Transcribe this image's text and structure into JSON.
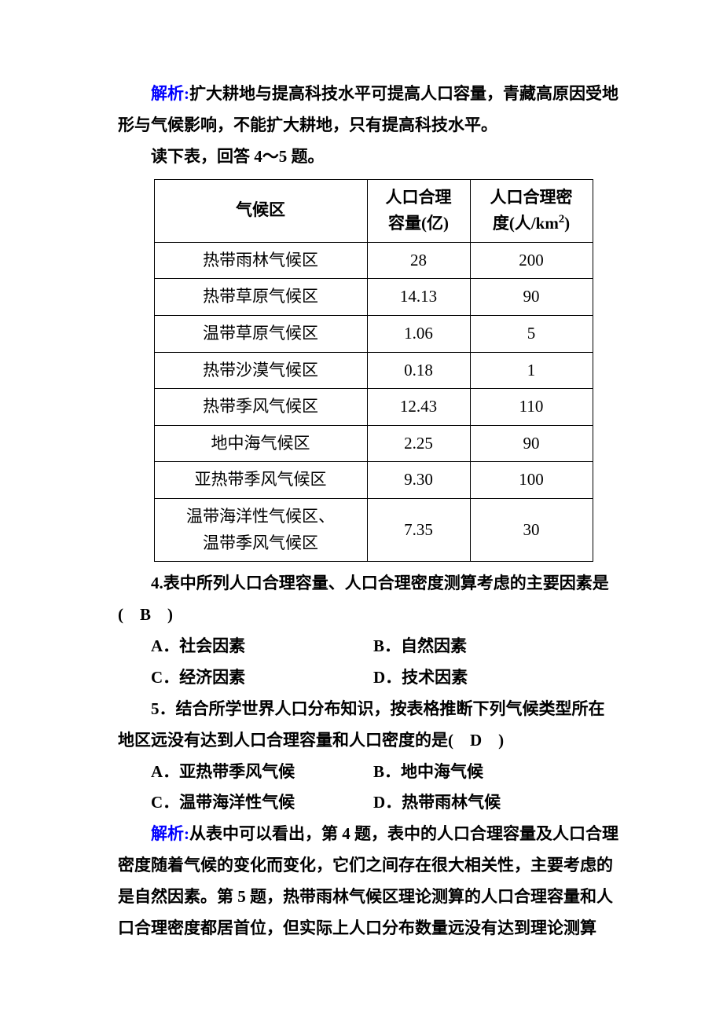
{
  "analysis1": {
    "label": "解析:",
    "text": "扩大耕地与提高科技水平可提高人口容量，青藏高原因受地形与气候影响，不能扩大耕地，只有提高科技水平。",
    "label_color": "#0000ff"
  },
  "prompt1": "读下表，回答 4～5 题。",
  "table": {
    "columns": [
      "气候区",
      "人口合理容量(亿)",
      "人口合理密度(人/km²)"
    ],
    "col_widths": [
      "270px",
      "130px",
      "155px"
    ],
    "rows": [
      [
        "热带雨林气候区",
        "28",
        "200"
      ],
      [
        "热带草原气候区",
        "14.13",
        "90"
      ],
      [
        "温带草原气候区",
        "1.06",
        "5"
      ],
      [
        "热带沙漠气候区",
        "0.18",
        "1"
      ],
      [
        "热带季风气候区",
        "12.43",
        "110"
      ],
      [
        "地中海气候区",
        "2.25",
        "90"
      ],
      [
        "亚热带季风气候区",
        "9.30",
        "100"
      ],
      [
        "温带海洋性气候区、温带季风气候区",
        "7.35",
        "30"
      ]
    ],
    "border_color": "#000000"
  },
  "q4": {
    "stem_line1": "4.表中所列人口合理容量、人口合理密度测算考虑的主要因素是",
    "stem_line2": "(　B　)",
    "options": {
      "A": "A．社会因素",
      "B": "B．自然因素",
      "C": "C．经济因素",
      "D": "D．技术因素"
    }
  },
  "q5": {
    "stem_line1": "5．结合所学世界人口分布知识，按表格推断下列气候类型所在",
    "stem_line2": "地区远没有达到人口合理容量和人口密度的是(　D　)",
    "options": {
      "A": "A．亚热带季风气候",
      "B": "B．地中海气候",
      "C": "C．温带海洋性气候",
      "D": "D．热带雨林气候"
    }
  },
  "analysis2": {
    "label": "解析:",
    "text": "从表中可以看出，第 4 题，表中的人口合理容量及人口合理密度随着气候的变化而变化，它们之间存在很大相关性，主要考虑的是自然因素。第 5 题，热带雨林气候区理论测算的人口合理容量和人口合理密度都居首位，但实际上人口分布数量远没有达到理论测算",
    "label_color": "#0000ff"
  },
  "colors": {
    "text": "#000000",
    "accent": "#0000ff",
    "background": "#ffffff"
  },
  "typography": {
    "body_font": "SimSun",
    "body_size_pt": 16,
    "line_height": 1.9
  }
}
